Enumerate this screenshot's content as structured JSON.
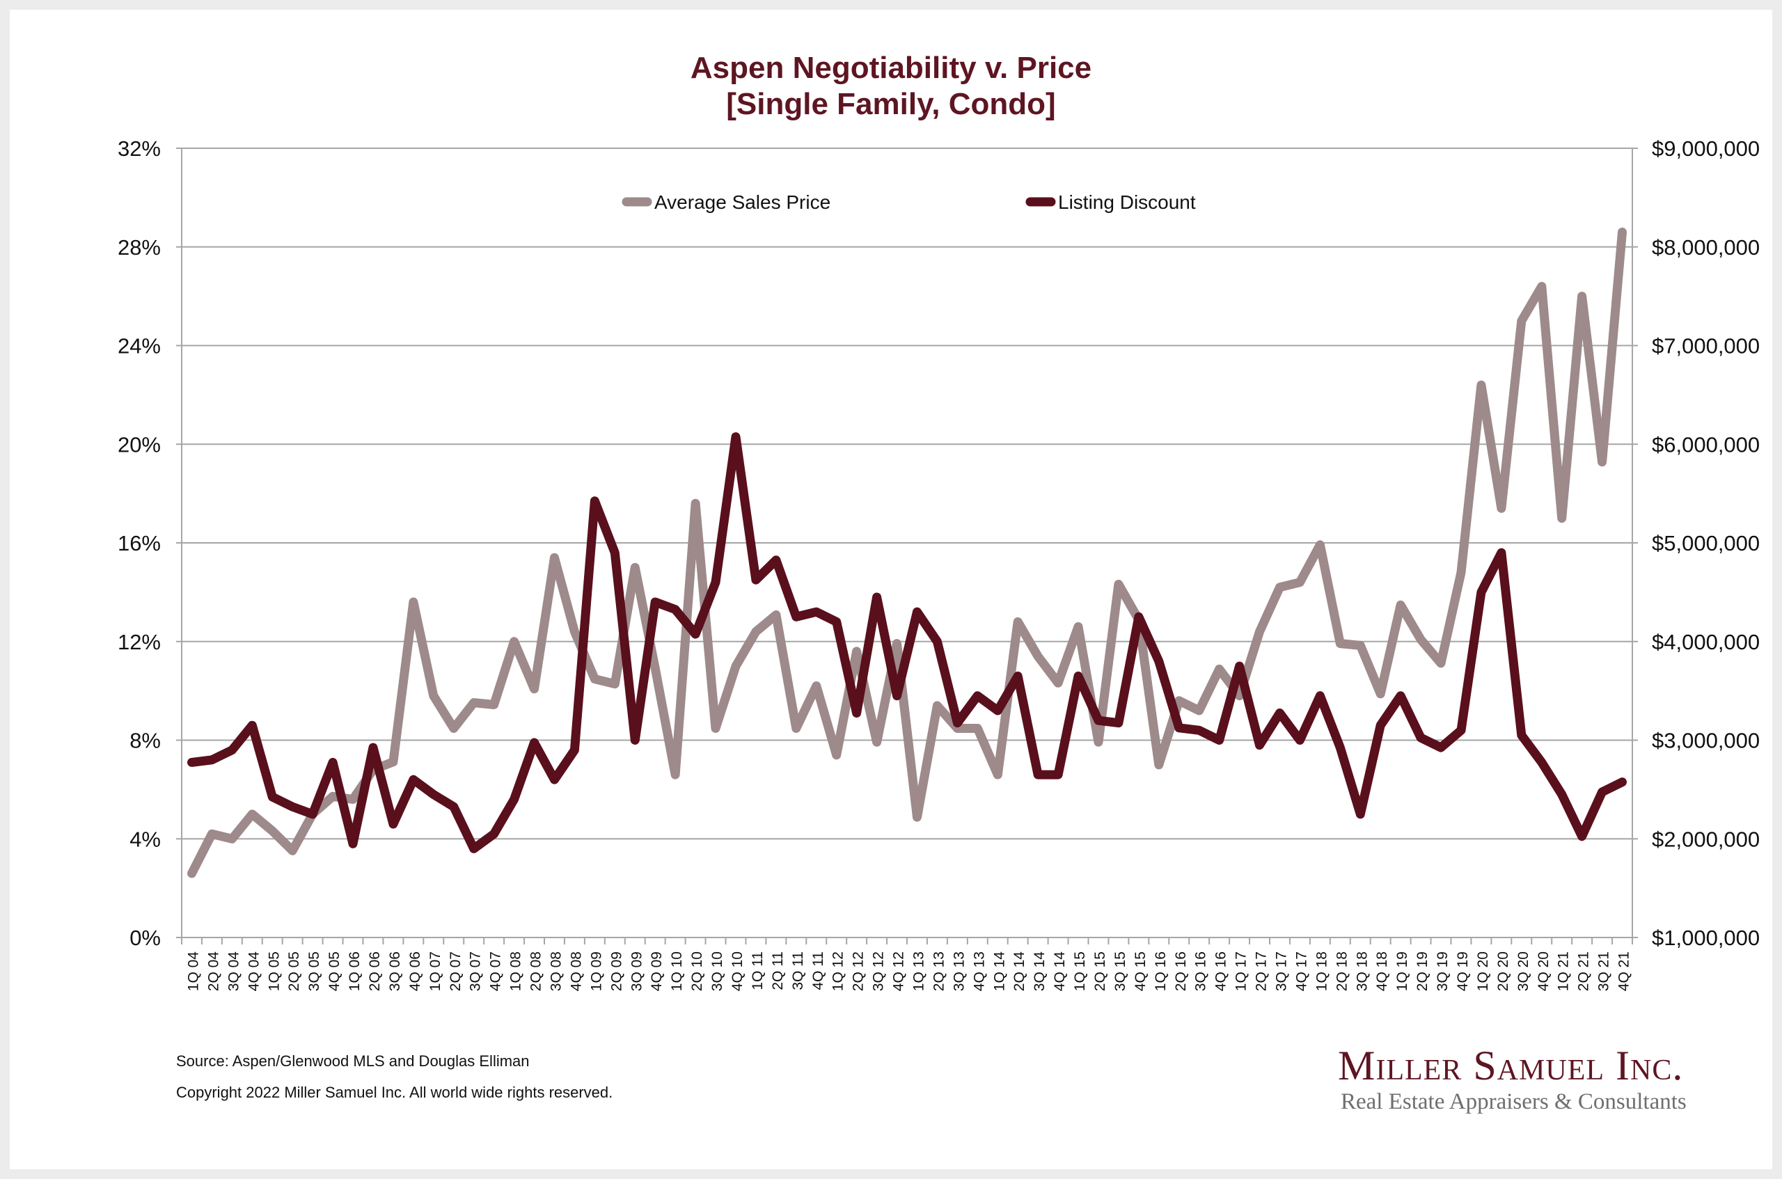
{
  "chart_data": {
    "type": "line",
    "title": "Aspen Negotiability v. Price",
    "subtitle": "[Single Family, Condo]",
    "xlabel": "",
    "ylabel_left": "",
    "ylabel_right": "",
    "grid": true,
    "legend_position": "top-center",
    "categories": [
      "1Q 04",
      "2Q 04",
      "3Q 04",
      "4Q 04",
      "1Q 05",
      "2Q 05",
      "3Q 05",
      "4Q 05",
      "1Q 06",
      "2Q 06",
      "3Q 06",
      "4Q 06",
      "1Q 07",
      "2Q 07",
      "3Q 07",
      "4Q 07",
      "1Q 08",
      "2Q 08",
      "3Q 08",
      "4Q 08",
      "1Q 09",
      "2Q 09",
      "3Q 09",
      "4Q 09",
      "1Q 10",
      "2Q 10",
      "3Q 10",
      "4Q 10",
      "1Q 11",
      "2Q 11",
      "3Q 11",
      "4Q 11",
      "1Q 12",
      "2Q 12",
      "3Q 12",
      "4Q 12",
      "1Q 13",
      "2Q 13",
      "3Q 13",
      "4Q 13",
      "1Q 14",
      "2Q 14",
      "3Q 14",
      "4Q 14",
      "1Q 15",
      "2Q 15",
      "3Q 15",
      "4Q 15",
      "1Q 16",
      "2Q 16",
      "3Q 16",
      "4Q 16",
      "1Q 17",
      "2Q 17",
      "3Q 17",
      "4Q 17",
      "1Q 18",
      "2Q 18",
      "3Q 18",
      "4Q 18",
      "1Q 19",
      "2Q 19",
      "3Q 19",
      "4Q 19",
      "1Q 20",
      "2Q 20",
      "3Q 20",
      "4Q 20",
      "1Q 21",
      "2Q 21",
      "3Q 21",
      "4Q 21"
    ],
    "y_left": {
      "min": 0,
      "max": 32,
      "step": 4,
      "tick_labels": [
        "0%",
        "4%",
        "8%",
        "12%",
        "16%",
        "20%",
        "24%",
        "28%",
        "32%"
      ]
    },
    "y_right": {
      "min": 1000000,
      "max": 9000000,
      "step": 1000000,
      "tick_labels": [
        "$1,000,000",
        "$2,000,000",
        "$3,000,000",
        "$4,000,000",
        "$5,000,000",
        "$6,000,000",
        "$7,000,000",
        "$8,000,000",
        "$9,000,000"
      ]
    },
    "series": [
      {
        "name": "Average Sales Price",
        "axis": "right",
        "color": "#9e8a8b",
        "values": [
          1650000,
          2050000,
          2000000,
          2250000,
          2080000,
          1880000,
          2250000,
          2430000,
          2400000,
          2700000,
          2780000,
          4400000,
          3450000,
          3120000,
          3380000,
          3360000,
          4000000,
          3520000,
          4850000,
          4100000,
          3620000,
          3570000,
          4750000,
          3730000,
          2650000,
          5400000,
          3120000,
          3750000,
          4100000,
          4270000,
          3120000,
          3550000,
          2850000,
          3900000,
          2980000,
          3980000,
          2220000,
          3350000,
          3120000,
          3120000,
          2650000,
          4200000,
          3850000,
          3580000,
          4150000,
          2980000,
          4580000,
          4220000,
          2750000,
          3400000,
          3300000,
          3720000,
          3450000,
          4100000,
          4550000,
          4600000,
          4980000,
          3980000,
          3960000,
          3470000,
          4370000,
          4020000,
          3780000,
          4700000,
          6600000,
          5350000,
          7250000,
          7600000,
          5250000,
          7500000,
          5820000,
          8150000
        ]
      },
      {
        "name": "Listing Discount",
        "axis": "left",
        "color": "#5a0f1c",
        "values": [
          7.1,
          7.2,
          7.6,
          8.6,
          5.7,
          5.3,
          5.0,
          7.1,
          3.8,
          7.7,
          4.6,
          6.4,
          5.8,
          5.3,
          3.6,
          4.2,
          5.6,
          7.9,
          6.4,
          7.6,
          17.7,
          15.6,
          8.0,
          13.6,
          13.3,
          12.3,
          14.4,
          20.3,
          14.5,
          15.3,
          13.0,
          13.2,
          12.8,
          9.1,
          13.8,
          9.8,
          13.2,
          12.0,
          8.7,
          9.8,
          9.2,
          10.6,
          6.6,
          6.6,
          10.6,
          8.8,
          8.7,
          13.0,
          11.2,
          8.5,
          8.4,
          8.0,
          11.0,
          7.8,
          9.1,
          8.0,
          9.8,
          7.7,
          5.0,
          8.6,
          9.8,
          8.1,
          7.7,
          8.4,
          14.0,
          15.6,
          8.2,
          7.1,
          5.8,
          4.1,
          5.9,
          6.3
        ]
      }
    ]
  },
  "footer": {
    "source": "Source: Aspen/Glenwood MLS and Douglas Elliman",
    "copyright": "Copyright 2022 Miller Samuel Inc.  All world wide rights reserved."
  },
  "logo": {
    "name": "Miller Samuel Inc.",
    "tagline": "Real Estate Appraisers & Consultants"
  }
}
